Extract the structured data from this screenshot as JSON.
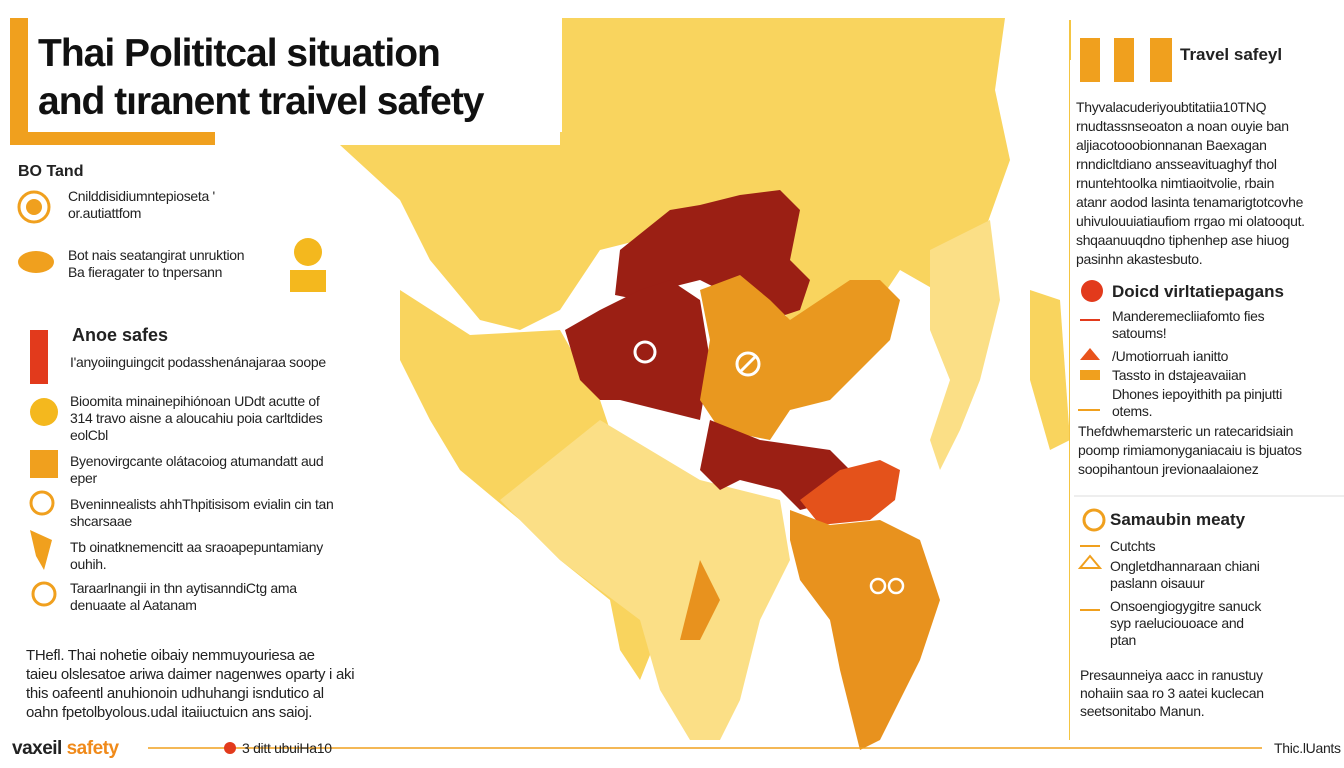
{
  "header": {
    "title": [
      "Thai Polititcal situation",
      "and tıranent traivel safety"
    ]
  },
  "left": {
    "section1": {
      "heading": "BO Tand",
      "items": [
        [
          "Cnilddisidiumntepioseta '",
          "or.autiattfom"
        ],
        [
          "Bot nais seatangirat unruktion",
          "Ba fieragater to tnpersann"
        ]
      ]
    },
    "section2": {
      "heading": "Anoe safes",
      "items": [
        [
          "I'anyoiinguingcit podasshenánajaraa soope"
        ],
        [
          "Bioomita minainepihiónoan UDdt acutte of",
          "314 travo aisne a aloucahiu poia carltdides",
          "eolCbl"
        ],
        [
          "Byenovirgcante olátacoiog atumandatt aud",
          "eper"
        ],
        [
          "Bveninnealists ahhThpitisisom evialin cin tan",
          "shcarsaae"
        ],
        [
          "Tb oinatknemencitt aa sraoapepuntamiany",
          "ouhih."
        ],
        [
          "Taraarlnangii in thn aytisanndiCtg ama",
          "denuaate al Aatanam"
        ]
      ]
    },
    "note": [
      "THefl. Thai nohetie oibaiy nemmuyouriesa ae",
      "taieu olslesatoe ariwa daimer nagenwes oparty i aki",
      "this oafeentl anuhionoin udhuhangi isndutico al",
      "oahn fpetolbyolous.udal itaiiuctuicn ans saioj."
    ]
  },
  "right": {
    "travel": {
      "heading": "Travel safeyl",
      "text": [
        "Thyvalacuderiyoubtitatiia10TNQ",
        "rnudtassnseoaton a noan ouyie ban",
        "aljiacotooobionnanan Baexagan",
        "rnndicltdiano ansseavituaghyf thol",
        "rnuntehtoolka nimtiaoitvolie, rbain",
        "atanr aodod lasinta tenamarigtotcovhe",
        "uhivulouuiatiaufiom rrgao mi olatooqut.",
        "shqaanuuqdno tiphenhep ase hiuog",
        "pasinhn akastesbuto."
      ]
    },
    "doicd": {
      "heading": "Doicd virltatiepagans",
      "items": [
        [
          "Manderemecliiafomto fies",
          "satoums!"
        ],
        [
          "/Umotiorruah ianitto"
        ],
        [
          "Tassto in dstajeavaiian"
        ],
        [
          "Dhones iepoyithith pa pinjutti",
          "otems."
        ]
      ]
    },
    "mid": {
      "text": [
        "Thefdwhemarsteric un ratecaridsiain",
        "poomp rimiamonyganiacaiu is bjuatos",
        "soopihantoun jrevionaalaionez"
      ]
    },
    "samaubin": {
      "heading": "Samaubin meaty",
      "items": [
        [
          "Cutchts"
        ],
        [
          "Ongletdhannaraan chiani",
          "paslann oisauur"
        ],
        [
          "Onsoengiogygitre sanuck",
          "syp raeluciouoace and",
          "ptan"
        ]
      ]
    },
    "bottom": {
      "text": [
        "Presaunneiya aacc in ranustuy",
        "nohaiin saa ro 3 aatei kuclecan",
        "seetsonitabo Manun."
      ]
    }
  },
  "footer": {
    "brand": [
      "vaxeil",
      "safety"
    ],
    "middle": "3 ditt ubuiHa10",
    "right": "Thic.lUants"
  }
}
